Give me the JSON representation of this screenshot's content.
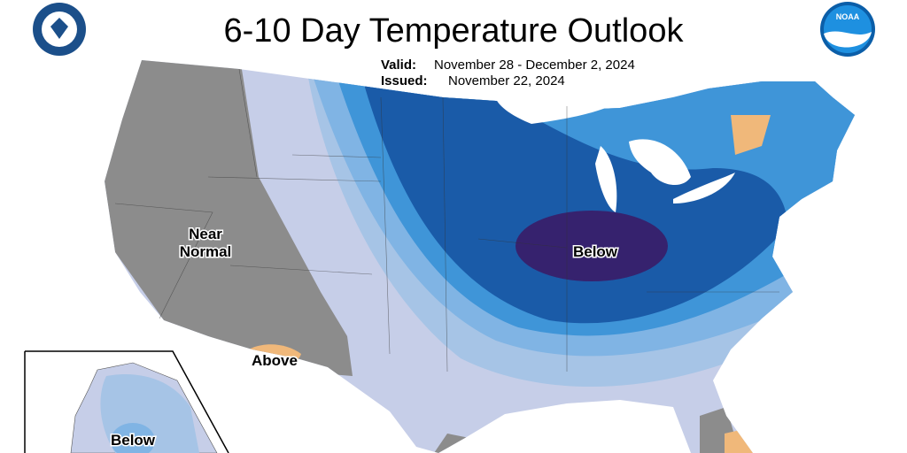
{
  "header": {
    "title": "6-10 Day Temperature Outlook",
    "valid_label": "Valid:",
    "valid_dates": "November 28 - December 2, 2024",
    "issued_label": "Issued:",
    "issued_date": "November 22, 2024",
    "noaa_logo_text": "NOAA"
  },
  "map": {
    "near_normal_label": [
      "Near",
      "Normal"
    ],
    "above_label": "Above",
    "below_label": "Below",
    "alaska_below_label": "Below"
  }
}
